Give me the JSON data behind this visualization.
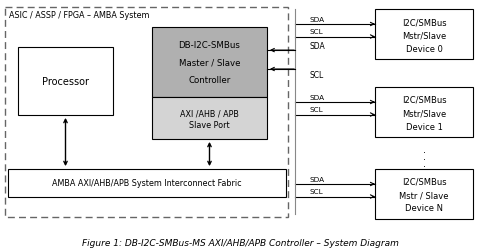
{
  "figure_caption": "Figure 1: DB-I2C-SMBus-MS AXI/AHB/APB Controller – System Diagram",
  "bg_color": "#ffffff",
  "asic_label": "ASIC / ASSP / FPGA – AMBA System",
  "processor_label": "Processor",
  "db_label_line1": "DB-I2C-SMBus",
  "db_label_line2": "Master / Slave",
  "db_label_line3": "Controller",
  "axi_label_line1": "AXI /AHB / APB",
  "axi_label_line2": "Slave Port",
  "fabric_label": "AMBA AXI/AHB/APB System Interconnect Fabric",
  "device0_line1": "I2C/SMBus",
  "device0_line2": "Mstr/Slave",
  "device0_line3": "Device 0",
  "device1_line1": "I2C/SMBus",
  "device1_line2": "Mstr/Slave",
  "device1_line3": "Device 1",
  "deviceN_line1": "I2C/SMBus",
  "deviceN_line2": "Mstr / Slave",
  "deviceN_line3": "Device N",
  "gray_top": "#b0b0b0",
  "gray_bot": "#d4d4d4"
}
